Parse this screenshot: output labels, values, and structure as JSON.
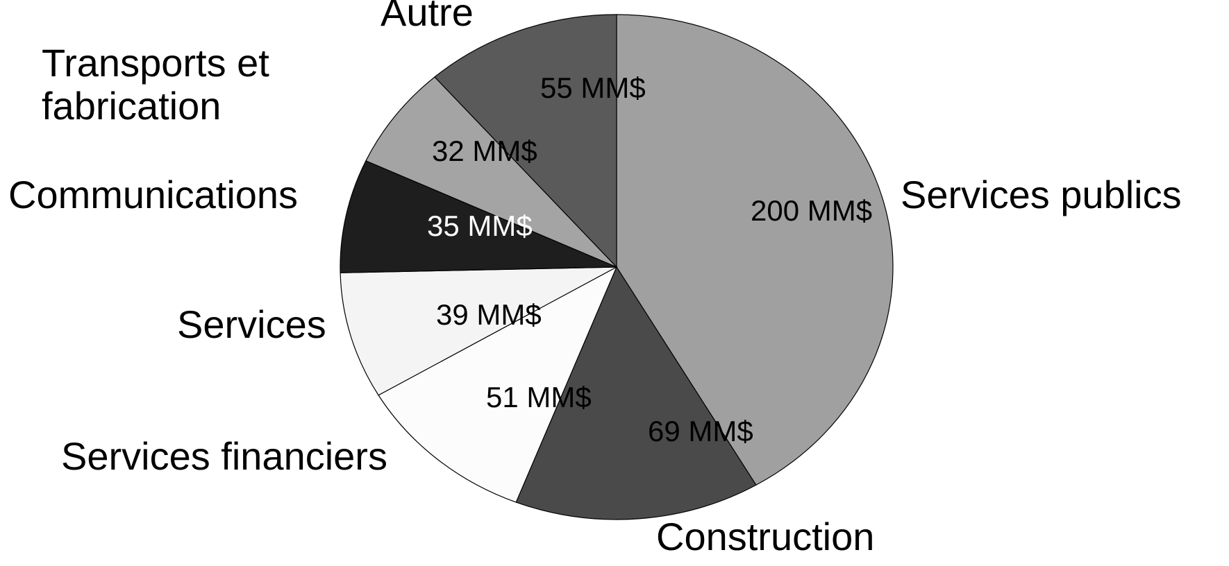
{
  "chart_data": {
    "type": "pie",
    "title": "",
    "unit": "MM$",
    "slices": [
      {
        "label": "Services publics",
        "value": 200,
        "value_label": "200 MM$",
        "color": "#a0a0a0",
        "text_color": "#000000"
      },
      {
        "label": "Construction",
        "value": 69,
        "value_label": "69 MM$",
        "color": "#4a4a4a",
        "text_color": "#000000"
      },
      {
        "label": "Services financiers",
        "value": 51,
        "value_label": "51 MM$",
        "color": "#fcfcfc",
        "text_color": "#000000"
      },
      {
        "label": "Services",
        "value": 39,
        "value_label": "39 MM$",
        "color": "#f4f4f4",
        "text_color": "#000000"
      },
      {
        "label": "Communications",
        "value": 35,
        "value_label": "35 MM$",
        "color": "#1e1e1e",
        "text_color": "#ffffff"
      },
      {
        "label": "Transports et fabrication",
        "label_lines": [
          "Transports et",
          "fabrication"
        ],
        "value": 32,
        "value_label": "32 MM$",
        "color": "#a4a4a4",
        "text_color": "#000000"
      },
      {
        "label": "Autre",
        "value": 55,
        "value_label": "55 MM$",
        "color": "#5a5a5a",
        "text_color": "#000000"
      }
    ],
    "start_angle": "12 o'clock",
    "direction": "clockwise",
    "legend": "none"
  }
}
